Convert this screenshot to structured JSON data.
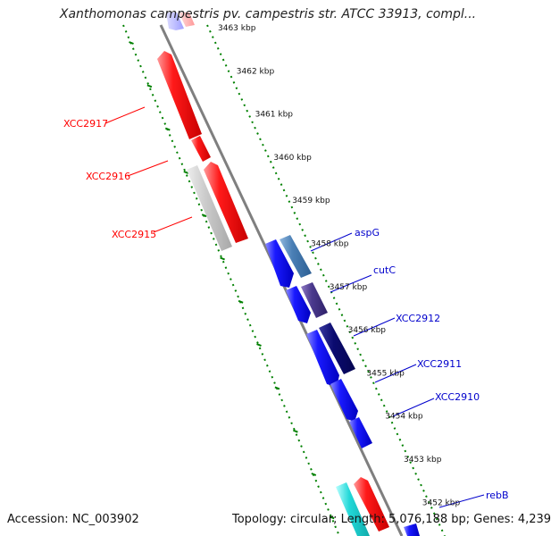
{
  "title": "Xanthomonas campestris pv. campestris str. ATCC 33913, compl...",
  "footer": {
    "accession": "Accession: NC_003902",
    "summary": "Topology: circular; Length: 5,076,188 bp; Genes: 4,239"
  },
  "ticks": [
    "3463 kbp",
    "3462 kbp",
    "3461 kbp",
    "3460 kbp",
    "3459 kbp",
    "3458 kbp",
    "3457 kbp",
    "3456 kbp",
    "3455 kbp",
    "3454 kbp",
    "3453 kbp",
    "3452 kbp"
  ],
  "genes_left": [
    "XCC2917",
    "XCC2916",
    "XCC2915"
  ],
  "genes_right": [
    "aspG",
    "cutC",
    "XCC2912",
    "XCC2911",
    "XCC2910",
    "rebB"
  ],
  "colors": {
    "reverse_strand": "#ff0000",
    "forward_strand": "#0000ff",
    "backbone": "#808080",
    "dotted_guides": "#008000",
    "label_left": "#ff0000",
    "label_right": "#0000cc"
  }
}
